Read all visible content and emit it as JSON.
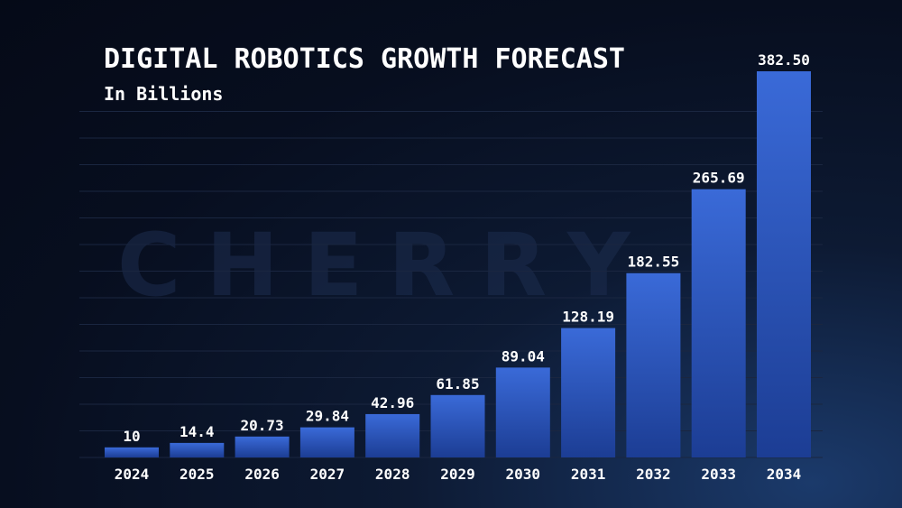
{
  "title": "DIGITAL ROBOTICS GROWTH FORECAST",
  "subtitle": "In Billions",
  "watermark": "CHERRY",
  "colors": {
    "background": "#070e1f",
    "bar_top": "#3a6ad8",
    "bar_bottom": "#1c3d94",
    "text": "#ffffff",
    "grid": "#1a2640"
  },
  "chart_data": {
    "type": "bar",
    "title": "DIGITAL ROBOTICS GROWTH FORECAST",
    "subtitle": "In Billions",
    "categories": [
      "2024",
      "2025",
      "2026",
      "2027",
      "2028",
      "2029",
      "2030",
      "2031",
      "2032",
      "2033",
      "2034"
    ],
    "values": [
      10,
      14.4,
      20.73,
      29.84,
      42.96,
      61.85,
      89.04,
      128.19,
      182.55,
      265.69,
      382.5
    ],
    "value_labels": [
      "10",
      "14.4",
      "20.73",
      "29.84",
      "42.96",
      "61.85",
      "89.04",
      "128.19",
      "182.55",
      "265.69",
      "382.50"
    ],
    "ylim": [
      0,
      382.5
    ],
    "grid": true,
    "legend": "none"
  }
}
